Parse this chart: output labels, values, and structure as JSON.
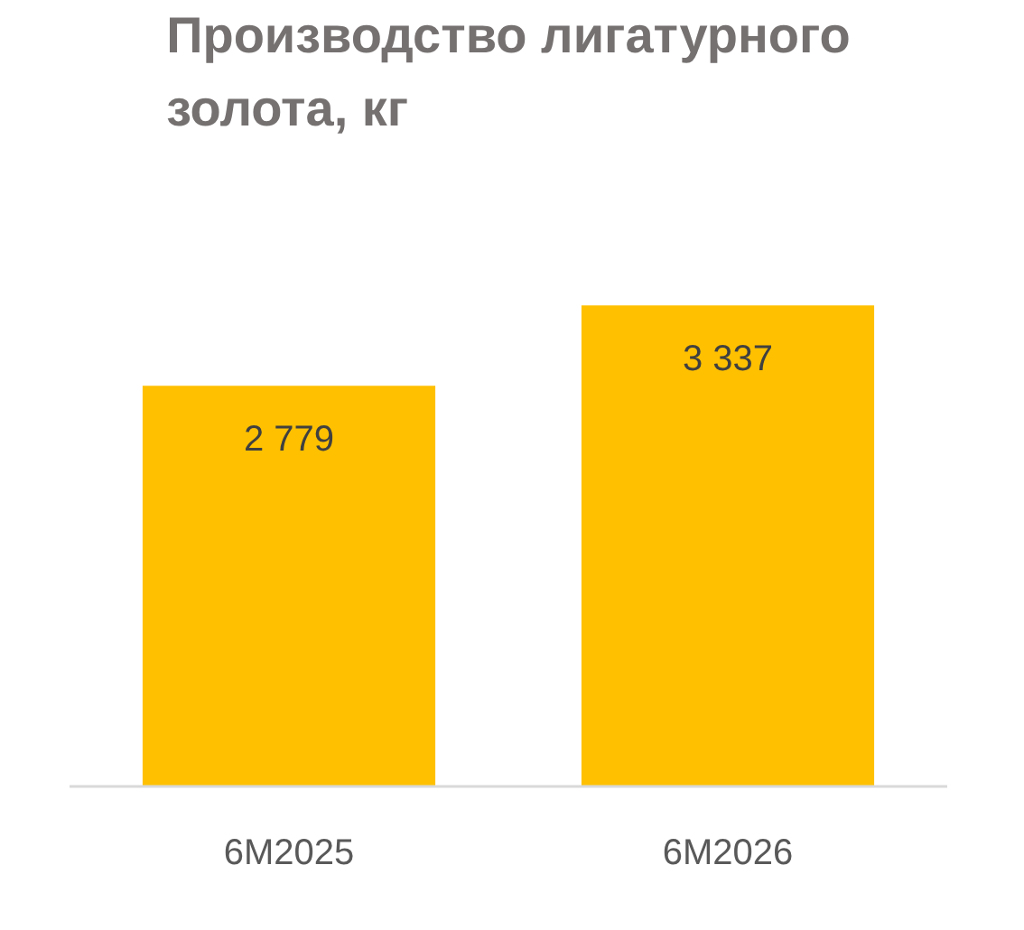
{
  "chart_data": {
    "type": "bar",
    "title": "Производство лигатурного золота, кг",
    "categories": [
      "6M2025",
      "6M2026"
    ],
    "values": [
      2779,
      3337
    ],
    "value_labels": [
      "2 779",
      "3 337"
    ],
    "color": "#ffc000",
    "grid": false
  }
}
